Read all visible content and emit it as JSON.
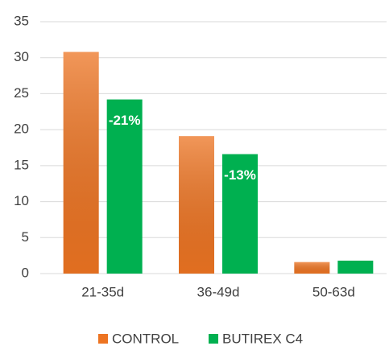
{
  "chart_data": {
    "type": "bar",
    "categories": [
      "21-35d",
      "36-49d",
      "50-63d"
    ],
    "series": [
      {
        "name": "CONTROL",
        "color": "#ed7422",
        "values": [
          30.8,
          19.1,
          1.6
        ]
      },
      {
        "name": "BUTIREX C4",
        "color": "#00b050",
        "values": [
          24.2,
          16.6,
          1.8
        ]
      }
    ],
    "annotations": [
      "-21%",
      "-13%"
    ],
    "ylim": [
      0,
      35
    ],
    "yticks": [
      0,
      5,
      10,
      15,
      20,
      25,
      30,
      35
    ],
    "grid": true,
    "legend": "bottom"
  }
}
